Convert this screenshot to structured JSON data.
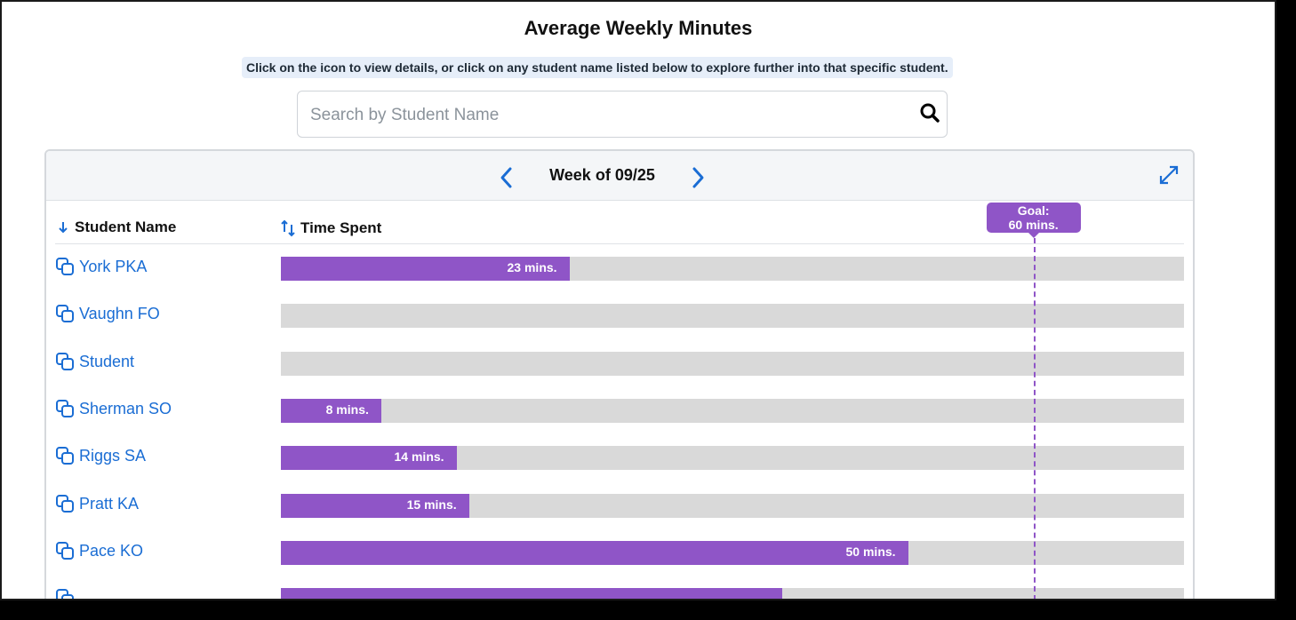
{
  "header": {
    "title": "Average Weekly Minutes",
    "hint": "Click on the icon to view details, or click on any student name listed below to explore further into that specific student."
  },
  "search": {
    "placeholder": "Search by Student Name",
    "value": ""
  },
  "panel": {
    "week_label": "Week of 09/25",
    "columns": {
      "name": "Student Name",
      "time": "Time Spent"
    },
    "goal": {
      "line1": "Goal:",
      "line2": "60 mins.",
      "minutes": 60
    },
    "scale_max_minutes": 72,
    "rows": [
      {
        "name": "York PKA",
        "minutes": 23,
        "label": "23 mins."
      },
      {
        "name": "Vaughn FO",
        "minutes": 0,
        "label": ""
      },
      {
        "name": "Student",
        "minutes": 0,
        "label": ""
      },
      {
        "name": "Sherman SO",
        "minutes": 8,
        "label": "8 mins."
      },
      {
        "name": "Riggs SA",
        "minutes": 14,
        "label": "14 mins."
      },
      {
        "name": "Pratt KA",
        "minutes": 15,
        "label": "15 mins."
      },
      {
        "name": "Pace KO",
        "minutes": 50,
        "label": "50 mins."
      },
      {
        "name": "",
        "minutes": 40,
        "label": ""
      }
    ]
  },
  "colors": {
    "accent": "#8f55c7",
    "link": "#1a6dd4",
    "track": "#d9d9d9"
  }
}
